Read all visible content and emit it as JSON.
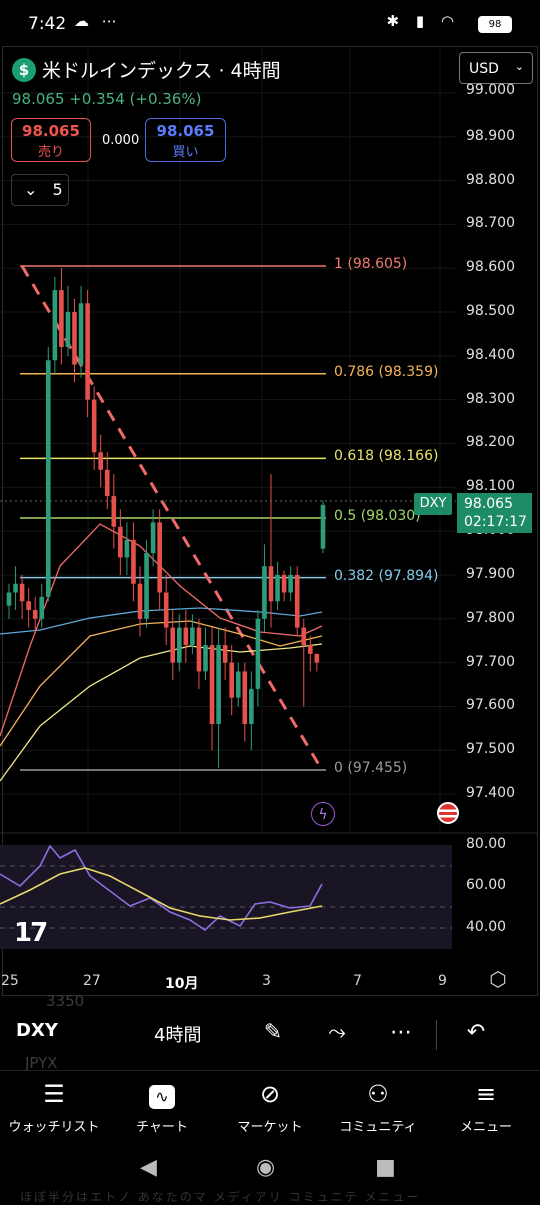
{
  "status_bar": {
    "time": "7:42",
    "battery": "98"
  },
  "header": {
    "symbol_initial": "$",
    "title": "米ドルインデックス · 4時間",
    "quote": "98.065 +0.354 (+0.36%)",
    "currency": "USD",
    "sell_price": "98.065",
    "sell_label": "売り",
    "spread": "0.000",
    "buy_price": "98.065",
    "buy_label": "買い",
    "indicators_count": "5"
  },
  "price_axis": [
    "99.000",
    "98.900",
    "98.800",
    "98.700",
    "98.600",
    "98.500",
    "98.400",
    "98.300",
    "98.200",
    "98.100",
    "98.000",
    "97.900",
    "97.800",
    "97.700",
    "97.600",
    "97.500",
    "97.400"
  ],
  "current_price_tag": {
    "symbol": "DXY",
    "price": "98.065",
    "countdown": "02:17:17"
  },
  "fib_levels": [
    {
      "label": "1 (98.605)",
      "value": 98.605,
      "color": "#f07a6e"
    },
    {
      "label": "0.786 (98.359)",
      "value": 98.359,
      "color": "#f5b35a"
    },
    {
      "label": "0.618 (98.166)",
      "value": 98.166,
      "color": "#e8e46a"
    },
    {
      "label": "0.5 (98.030)",
      "value": 98.03,
      "color": "#9fd86b"
    },
    {
      "label": "0.382 (97.894)",
      "value": 97.894,
      "color": "#86c9e8"
    },
    {
      "label": "0 (97.455)",
      "value": 97.455,
      "color": "#9a9a9a"
    }
  ],
  "rsi_axis": [
    "80.00",
    "60.00",
    "40.00"
  ],
  "time_axis": [
    "25",
    "27",
    "10月",
    "3",
    "7",
    "9"
  ],
  "toolbar": {
    "symbol": "DXY",
    "timeframe": "4時間",
    "ghost_top": "3350",
    "ghost_bottom": "JPYX"
  },
  "nav": [
    {
      "label": "ウォッチリスト",
      "icon": "watchlist-icon"
    },
    {
      "label": "チャート",
      "icon": "chart-icon"
    },
    {
      "label": "マーケット",
      "icon": "compass-icon"
    },
    {
      "label": "コミュニティ",
      "icon": "community-icon"
    },
    {
      "label": "メニュー",
      "icon": "menu-icon"
    }
  ],
  "ghost_footer": "ほぼ半分はエトノ  あなたのマ  メディアリ  コミュニテ  メニュー",
  "colors": {
    "up": "#2c9c7a",
    "down": "#e5524a",
    "accent": "#1d8b65"
  }
}
